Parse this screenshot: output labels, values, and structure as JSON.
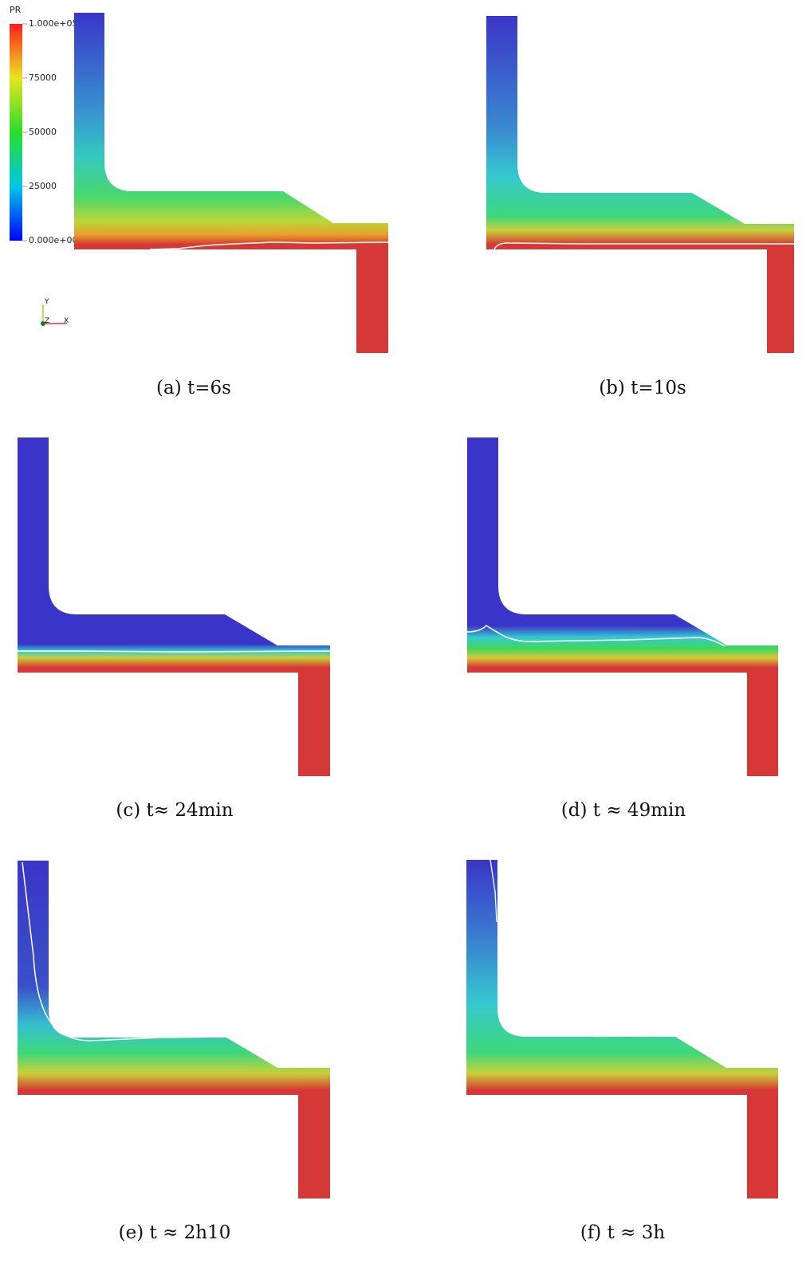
{
  "legend": {
    "title": "PR",
    "ticks": [
      "1.000e+05",
      "75000",
      "50000",
      "25000",
      "0.000e+00"
    ]
  },
  "axes_triad": {
    "y": "Y",
    "z": "Z",
    "x": "X"
  },
  "panels": [
    {
      "id": "a",
      "caption": "(a) t=6s"
    },
    {
      "id": "b",
      "caption": "(b) t=10s"
    },
    {
      "id": "c",
      "caption": "(c) t≈ 24min"
    },
    {
      "id": "d",
      "caption": "(d) t ≈ 49min"
    },
    {
      "id": "e",
      "caption": "(e) t ≈ 2h10"
    },
    {
      "id": "f",
      "caption": "(f) t ≈ 3h"
    }
  ],
  "colors": {
    "solid_red": "#d63838",
    "blue": "#3a35c8",
    "cyan": "#35c8d6",
    "green": "#3fd85a",
    "yellow": "#c8d03a",
    "orange": "#e88a2a"
  }
}
